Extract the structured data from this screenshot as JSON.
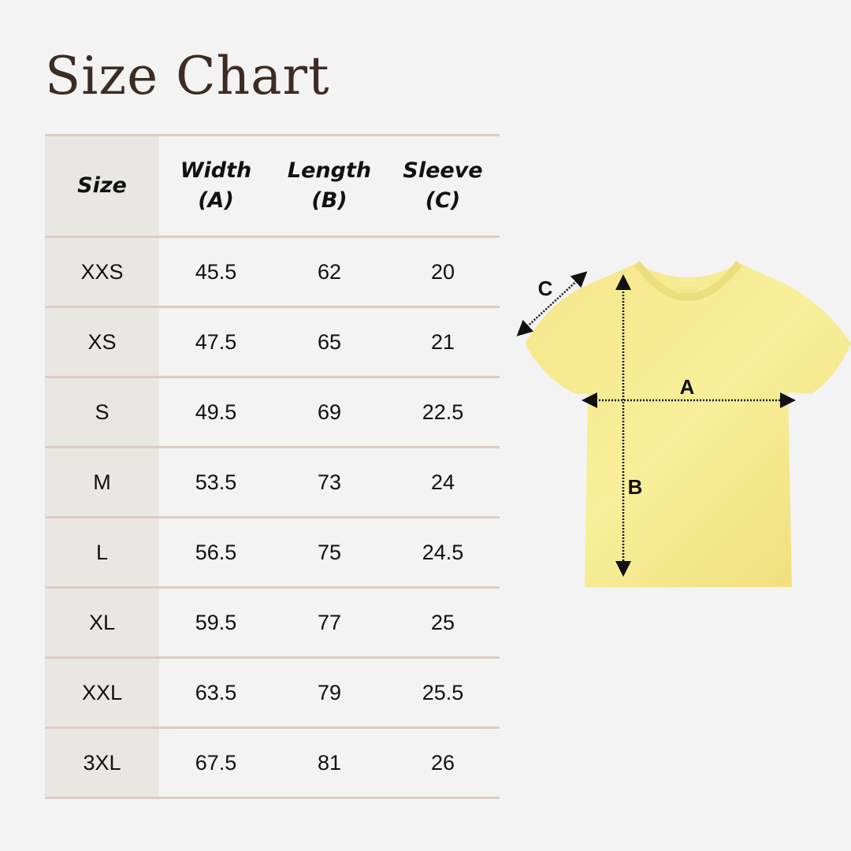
{
  "title": "Size Chart",
  "table": {
    "headers": [
      {
        "line1": "Size",
        "line2": ""
      },
      {
        "line1": "Width",
        "line2": "(A)"
      },
      {
        "line1": "Length",
        "line2": "(B)"
      },
      {
        "line1": "Sleeve",
        "line2": "(C)"
      }
    ],
    "rows": [
      [
        "XXS",
        "45.5",
        "62",
        "20"
      ],
      [
        "XS",
        "47.5",
        "65",
        "21"
      ],
      [
        "S",
        "49.5",
        "69",
        "22.5"
      ],
      [
        "M",
        "53.5",
        "73",
        "24"
      ],
      [
        "L",
        "56.5",
        "75",
        "24.5"
      ],
      [
        "XL",
        "59.5",
        "77",
        "25"
      ],
      [
        "XXL",
        "63.5",
        "79",
        "25.5"
      ],
      [
        "3XL",
        "67.5",
        "81",
        "26"
      ]
    ]
  },
  "diagram": {
    "label_a": "A",
    "label_b": "B",
    "label_c": "C",
    "shirt_color": "#f6ea94"
  }
}
